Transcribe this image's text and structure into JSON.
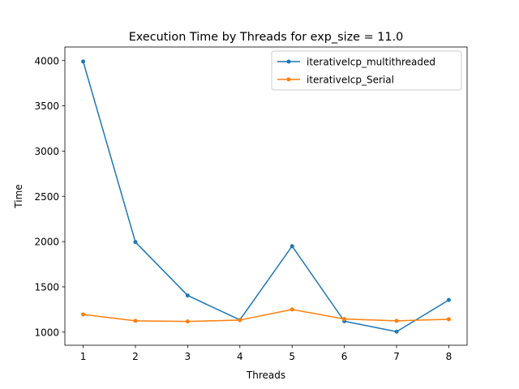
{
  "chart_data": {
    "type": "line",
    "title": "Execution Time by Threads for exp_size = 11.0",
    "xlabel": "Threads",
    "ylabel": "Time",
    "x": [
      1,
      2,
      3,
      4,
      5,
      6,
      7,
      8
    ],
    "xlim": [
      0.65,
      8.35
    ],
    "ylim": [
      855,
      4150
    ],
    "xticks": [
      "1",
      "2",
      "3",
      "4",
      "5",
      "6",
      "7",
      "8"
    ],
    "yticks": [
      "1000",
      "1500",
      "2000",
      "2500",
      "3000",
      "3500",
      "4000"
    ],
    "grid": false,
    "legend_position": "top-right",
    "series": [
      {
        "name": "iterativeIcp_multithreaded",
        "color": "#1f77b4",
        "values": [
          3990,
          1995,
          1405,
          1135,
          1950,
          1120,
          1005,
          1355
        ]
      },
      {
        "name": "iterativeIcp_Serial",
        "color": "#ff7f0e",
        "values": [
          1195,
          1125,
          1118,
          1133,
          1250,
          1145,
          1125,
          1142
        ]
      }
    ]
  }
}
